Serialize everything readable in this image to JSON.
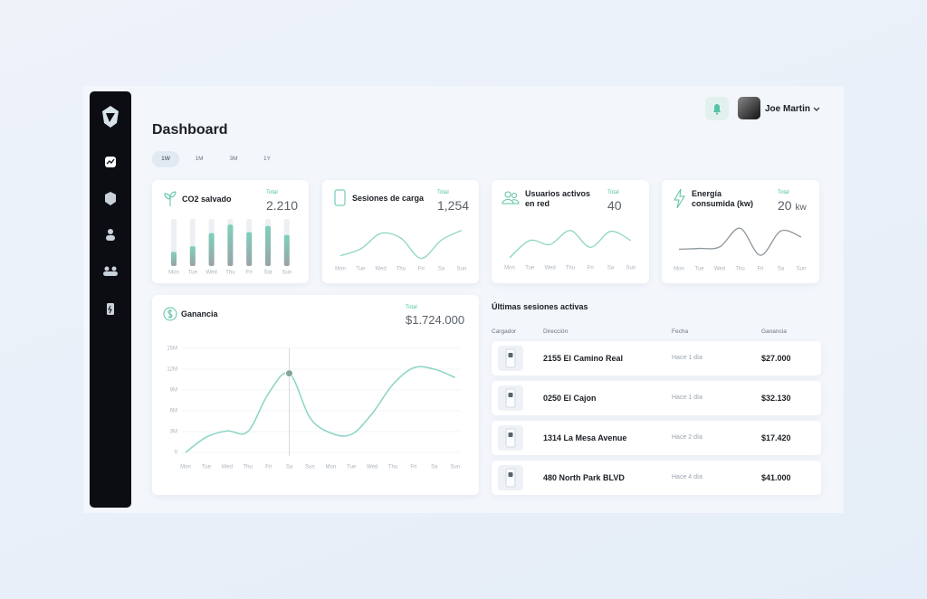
{
  "user": {
    "name": "Joe Martin"
  },
  "header": {
    "title": "Dashboard"
  },
  "periods": {
    "options": [
      "1W",
      "1M",
      "3M",
      "1Y"
    ],
    "active": 0
  },
  "chart_data": [
    {
      "type": "bar",
      "title": "CO2 salvado",
      "total_label": "Total",
      "total": "2.210",
      "categories": [
        "Mon",
        "Tue",
        "Wed",
        "Thu",
        "Fri",
        "Sat",
        "Sun"
      ],
      "values": [
        30,
        42,
        70,
        88,
        72,
        85,
        66
      ],
      "ylim": [
        0,
        100
      ],
      "color": "#7fd0bb"
    },
    {
      "type": "line",
      "title": "Sesiones de carga",
      "total_label": "Total",
      "total": "1,254",
      "categories": [
        "Mon",
        "Tue",
        "Wed",
        "Thu",
        "Fri",
        "Sa",
        "Sun"
      ],
      "values": [
        15,
        32,
        72,
        60,
        8,
        55,
        80
      ],
      "ylim": [
        0,
        100
      ],
      "color": "#8dd5c2"
    },
    {
      "type": "line",
      "title": "Usuarios activos en red",
      "total_label": "Total",
      "total": "40",
      "categories": [
        "Mon",
        "Tue",
        "Wed",
        "Thu",
        "Fri",
        "Sa",
        "Sun"
      ],
      "values": [
        12,
        55,
        45,
        80,
        38,
        78,
        55
      ],
      "ylim": [
        0,
        100
      ],
      "color": "#8dd5c2"
    },
    {
      "type": "line",
      "title": "Energía consumida (kw)",
      "total_label": "Total",
      "total": "20",
      "unit": "kw",
      "categories": [
        "Mon",
        "Tue",
        "Wed",
        "Thu",
        "Fri",
        "Sa",
        "Sun"
      ],
      "values": [
        30,
        32,
        36,
        85,
        14,
        78,
        62
      ],
      "ylim": [
        0,
        100
      ],
      "color": "#8c979c"
    },
    {
      "type": "line",
      "title": "Ganancia",
      "total_label": "Total",
      "total": "$1.724.000",
      "categories": [
        "Mon",
        "Tue",
        "Wed",
        "Thu",
        "Fri",
        "Sa",
        "Sun",
        "Mon",
        "Tue",
        "Wed",
        "Thu",
        "Fri",
        "Sa",
        "Sun"
      ],
      "values": [
        0,
        2200000,
        3100000,
        3000000,
        8500000,
        11400000,
        5000000,
        2800000,
        2600000,
        5600000,
        9800000,
        12200000,
        12000000,
        10800000
      ],
      "ylim": [
        0,
        15000000
      ],
      "yticks": [
        0,
        {
          "value": 3000000,
          "label": "3M"
        },
        {
          "value": 6000000,
          "label": "6M"
        },
        {
          "value": 9000000,
          "label": "9M"
        },
        {
          "value": 12000000,
          "label": "12M"
        },
        {
          "value": 15000000,
          "label": "15M"
        }
      ],
      "grid": true,
      "highlight": 5,
      "color": "#8fd6c8"
    }
  ],
  "table": {
    "title": "Últimas sesiones activas",
    "columns": [
      "Cargador",
      "Dirección",
      "Fecha",
      "Ganancia"
    ],
    "rows": [
      [
        "2155 El Camino Real",
        "Hace 1 día",
        "$27.000"
      ],
      [
        "0250 El Cajon",
        "Hace 1 día",
        "$32.130"
      ],
      [
        "1314 La Mesa Avenue",
        "Hace 2 día",
        "$17.420"
      ],
      [
        "480 North Park BLVD",
        "Hace 4 día",
        "$41.000"
      ]
    ]
  }
}
